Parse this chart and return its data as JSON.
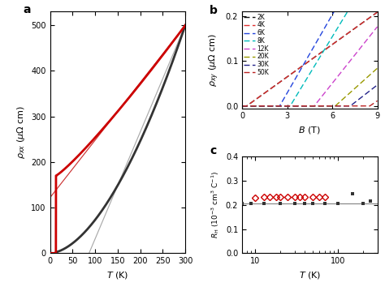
{
  "panel_a": {
    "xlim": [
      0,
      300
    ],
    "ylim": [
      0,
      530
    ],
    "yticks": [
      0,
      100,
      200,
      300,
      400,
      500
    ],
    "xticks": [
      0,
      50,
      100,
      150,
      200,
      250,
      300
    ]
  },
  "panel_b": {
    "xlim": [
      0,
      9
    ],
    "ylim": [
      -0.005,
      0.21
    ],
    "yticks": [
      0.0,
      0.1,
      0.2
    ],
    "xticks": [
      0,
      3,
      6,
      9
    ],
    "legend_temps": [
      "2K",
      "4K",
      "6K",
      "8K",
      "12K",
      "20K",
      "30K",
      "50K"
    ],
    "legend_colors": [
      "#111111",
      "#e03030",
      "#2244dd",
      "#00bbbb",
      "#cc44cc",
      "#999900",
      "#222288",
      "#bb2222"
    ],
    "Bc2": [
      0.3,
      0.3,
      2.5,
      3.2,
      4.8,
      6.2,
      7.2,
      8.5
    ],
    "slopes": [
      0.024,
      0.024,
      0.058,
      0.055,
      0.042,
      0.03,
      0.026,
      0.023
    ]
  },
  "panel_c": {
    "xlim": [
      7,
      300
    ],
    "ylim": [
      0,
      0.4
    ],
    "yticks": [
      0.0,
      0.1,
      0.2,
      0.3,
      0.4
    ],
    "hline": 0.205,
    "black_T": [
      7,
      9,
      13,
      20,
      30,
      40,
      50,
      70,
      100,
      150,
      200,
      250
    ],
    "black_R": [
      0.205,
      0.205,
      0.205,
      0.205,
      0.205,
      0.205,
      0.205,
      0.205,
      0.205,
      0.245,
      0.205,
      0.215
    ],
    "red_T": [
      10,
      13,
      15,
      18,
      20,
      25,
      30,
      35,
      40,
      50,
      60,
      70
    ],
    "red_R": [
      0.23,
      0.232,
      0.232,
      0.232,
      0.232,
      0.232,
      0.232,
      0.232,
      0.232,
      0.232,
      0.232,
      0.232
    ]
  }
}
